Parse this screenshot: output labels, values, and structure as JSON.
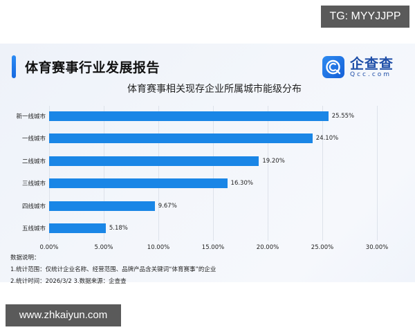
{
  "watermarks": {
    "top": "TG: MYYJJPP",
    "bottom": "www.zhkaiyun.com"
  },
  "header": {
    "title": "体育赛事行业发展报告",
    "subtitle": "体育赛事相关现存企业所属城市能级分布",
    "logo": {
      "cn": "企查查",
      "en": "Qcc.com",
      "icon": "qcc-logo-icon"
    }
  },
  "colors": {
    "bar": "#1a86e6",
    "accent": "#1568e0",
    "grid": "#dde2ea"
  },
  "notes": {
    "heading": "数据说明：",
    "line1": "1.统计范围：仅统计企业名称、经营范围、品牌产品含关键词“体育赛事”的企业",
    "line2": "2.统计时间：2026/3/2  3.数据来源：企查查"
  },
  "chart_data": {
    "type": "bar",
    "orientation": "horizontal",
    "title": "体育赛事相关现存企业所属城市能级分布",
    "categories": [
      "新一线城市",
      "一线城市",
      "二线城市",
      "三线城市",
      "四线城市",
      "五线城市"
    ],
    "values": [
      25.55,
      24.1,
      19.2,
      16.3,
      9.67,
      5.18
    ],
    "value_labels": [
      "25.55%",
      "24.10%",
      "19.20%",
      "16.30%",
      "9.67%",
      "5.18%"
    ],
    "xlabel": "",
    "ylabel": "",
    "xlim": [
      0,
      30
    ],
    "x_ticks": [
      "0.00%",
      "5.00%",
      "10.00%",
      "15.00%",
      "20.00%",
      "25.00%",
      "30.00%"
    ],
    "grid": true,
    "legend": "none"
  }
}
